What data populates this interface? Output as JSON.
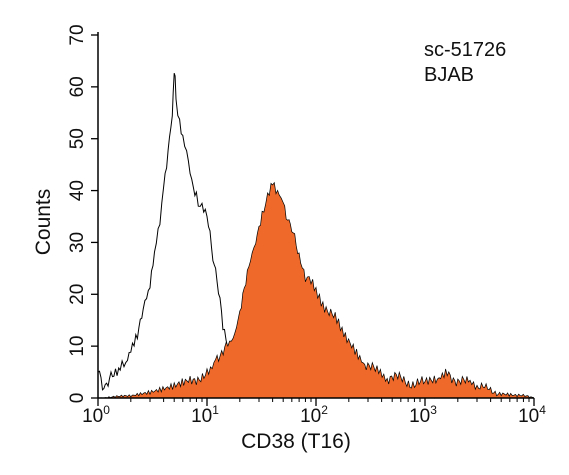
{
  "chart_data": {
    "type": "area",
    "title": "",
    "xlabel": "CD38 (T16)",
    "ylabel": "Counts",
    "x_scale": "log",
    "xlim": [
      1,
      10000
    ],
    "ylim": [
      0,
      70
    ],
    "x_ticks": [
      {
        "base": "10",
        "exp": "0",
        "value": 1
      },
      {
        "base": "10",
        "exp": "1",
        "value": 10
      },
      {
        "base": "10",
        "exp": "2",
        "value": 100
      },
      {
        "base": "10",
        "exp": "3",
        "value": 1000
      },
      {
        "base": "10",
        "exp": "4",
        "value": 10000
      }
    ],
    "y_ticks": [
      "0",
      "10",
      "20",
      "30",
      "40",
      "50",
      "60",
      "70"
    ],
    "annotations": [
      "sc-51726",
      "BJAB"
    ],
    "grid": false,
    "series": [
      {
        "style": "outline",
        "color": "#000000",
        "x": [
          1.0,
          1.1,
          1.2,
          1.4,
          1.6,
          1.8,
          2.0,
          2.3,
          2.6,
          3.0,
          3.3,
          3.7,
          4.0,
          4.4,
          4.8,
          5.0,
          5.2,
          5.6,
          6.0,
          6.5,
          7.0,
          7.5,
          8.0,
          9.0,
          10.0,
          11.0,
          12.0,
          14.0,
          16.0,
          18.0,
          20.0,
          25.0,
          30.0,
          40.0,
          60.0,
          100.0,
          200.0,
          1000.0,
          10000.0
        ],
        "y": [
          5,
          2,
          3,
          4,
          5,
          7,
          10,
          13,
          17,
          22,
          28,
          35,
          40,
          48,
          55,
          63,
          58,
          53,
          50,
          47,
          44,
          41,
          39,
          37,
          35,
          30,
          24,
          14,
          9,
          6,
          5,
          4,
          3,
          2,
          1,
          1,
          0.5,
          0.2,
          0
        ]
      },
      {
        "style": "filled",
        "color": "#ef6a2a",
        "x": [
          1.0,
          2.0,
          3.0,
          5.0,
          7.0,
          10.0,
          12.0,
          15.0,
          18.0,
          20.0,
          22.0,
          25.0,
          28.0,
          32.0,
          36.0,
          40.0,
          43.0,
          46.0,
          50.0,
          55.0,
          60.0,
          70.0,
          80.0,
          90.0,
          100.0,
          120.0,
          150.0,
          180.0,
          220.0,
          280.0,
          350.0,
          450.0,
          600.0,
          800.0,
          1000.0,
          1300.0,
          1600.0,
          2000.0,
          2500.0,
          3000.0,
          4000.0,
          5000.0,
          7000.0,
          10000.0
        ],
        "y": [
          0,
          0.3,
          1,
          2,
          3.5,
          5,
          8,
          10,
          13,
          17,
          22,
          27,
          31,
          36,
          38,
          41,
          40,
          39,
          38,
          35,
          32,
          28,
          24,
          22,
          20,
          18,
          15,
          13,
          10,
          7,
          5,
          4,
          3.5,
          3,
          2.5,
          4,
          5,
          3.5,
          2.5,
          2,
          1.5,
          1,
          0.5,
          0
        ]
      }
    ]
  }
}
